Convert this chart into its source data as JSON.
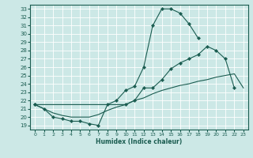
{
  "title": "",
  "xlabel": "Humidex (Indice chaleur)",
  "bg_color": "#cce8e6",
  "grid_color": "#ffffff",
  "line_color": "#1a5c50",
  "xlim": [
    -0.5,
    23.5
  ],
  "ylim": [
    18.5,
    33.5
  ],
  "xticks": [
    0,
    1,
    2,
    3,
    4,
    5,
    6,
    7,
    8,
    9,
    10,
    11,
    12,
    13,
    14,
    15,
    16,
    17,
    18,
    19,
    20,
    21,
    22,
    23
  ],
  "yticks": [
    19,
    20,
    21,
    22,
    23,
    24,
    25,
    26,
    27,
    28,
    29,
    30,
    31,
    32,
    33
  ],
  "curve1_x": [
    0,
    1,
    2,
    3,
    4,
    5,
    6,
    7,
    8,
    9,
    10,
    11,
    12,
    13,
    14,
    15,
    16,
    17,
    18
  ],
  "curve1_y": [
    21.5,
    21.0,
    20.0,
    19.8,
    19.5,
    19.5,
    19.2,
    19.0,
    21.5,
    22.0,
    23.2,
    23.7,
    26.0,
    31.0,
    33.0,
    33.0,
    32.5,
    31.2,
    29.5
  ],
  "curve2_x": [
    0,
    10,
    11,
    12,
    13,
    14,
    15,
    16,
    17,
    18,
    19,
    20,
    21,
    22
  ],
  "curve2_y": [
    21.5,
    21.5,
    22.0,
    23.5,
    23.5,
    24.5,
    25.8,
    26.5,
    27.0,
    27.5,
    28.5,
    28.0,
    27.0,
    23.5
  ],
  "curve3_x": [
    0,
    1,
    2,
    3,
    4,
    5,
    6,
    7,
    8,
    9,
    10,
    11,
    12,
    13,
    14,
    15,
    16,
    17,
    18,
    19,
    20,
    21,
    22,
    23
  ],
  "curve3_y": [
    21.5,
    21.0,
    20.5,
    20.2,
    20.0,
    20.0,
    20.0,
    20.3,
    20.8,
    21.2,
    21.5,
    22.0,
    22.3,
    22.8,
    23.2,
    23.5,
    23.8,
    24.0,
    24.3,
    24.5,
    24.8,
    25.0,
    25.2,
    23.5
  ]
}
